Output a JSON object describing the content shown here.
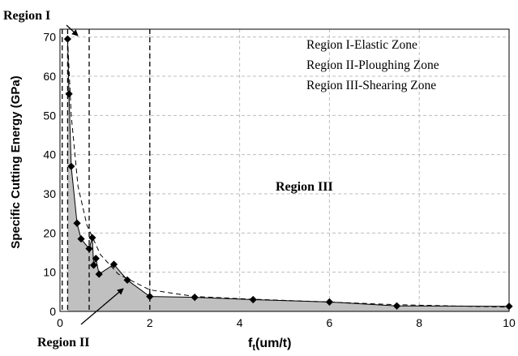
{
  "chart_data": {
    "type": "area",
    "xlabel_main": "f",
    "xlabel_sub": "t",
    "xlabel_rest": "(um/t)",
    "ylabel": "Specific Cutting Energy (GPa)",
    "xlim": [
      0,
      10
    ],
    "ylim": [
      0,
      72
    ],
    "x_ticks": [
      0,
      2,
      4,
      6,
      8,
      10
    ],
    "y_ticks": [
      0,
      10,
      20,
      30,
      40,
      50,
      60,
      70
    ],
    "grid": "dashed",
    "series": [
      {
        "style": "area-with-markers",
        "color": "#c0c0c0",
        "points": [
          [
            0.17,
            69.5
          ],
          [
            0.2,
            55.5
          ],
          [
            0.25,
            37.0
          ],
          [
            0.38,
            22.5
          ],
          [
            0.47,
            18.5
          ],
          [
            0.65,
            16.0
          ],
          [
            0.72,
            18.8
          ],
          [
            0.75,
            11.8
          ],
          [
            0.8,
            13.5
          ],
          [
            0.87,
            9.5
          ],
          [
            1.2,
            12.0
          ],
          [
            1.5,
            8.0
          ],
          [
            2.0,
            3.8
          ],
          [
            3.0,
            3.6
          ],
          [
            4.3,
            3.0
          ],
          [
            6.0,
            2.4
          ],
          [
            7.5,
            1.4
          ],
          [
            10.0,
            1.3
          ]
        ]
      },
      {
        "style": "dashed-trend",
        "color": "#000000",
        "points": [
          [
            0.17,
            69.5
          ],
          [
            0.25,
            50.0
          ],
          [
            0.4,
            32.0
          ],
          [
            0.6,
            22.0
          ],
          [
            0.9,
            14.5
          ],
          [
            1.3,
            9.5
          ],
          [
            2.0,
            5.5
          ],
          [
            3.0,
            3.8
          ],
          [
            4.3,
            3.1
          ],
          [
            6.0,
            2.4
          ],
          [
            7.5,
            1.7
          ],
          [
            10.0,
            1.1
          ]
        ]
      }
    ],
    "region_boundaries_x": [
      0.05,
      0.17,
      0.65,
      2.0
    ],
    "legend_position": "top-right",
    "legend_entries": [
      "Region I-Elastic Zone",
      "Region II-Ploughing Zone",
      "Region III-Shearing Zone"
    ],
    "annotations": {
      "region1": "Region I",
      "region2": "Region II",
      "region3": "Region III"
    }
  }
}
